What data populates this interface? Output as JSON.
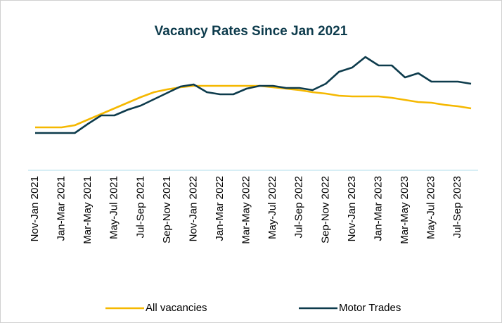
{
  "chart_data": {
    "type": "line",
    "title": "Vacancy Rates Since Jan 2021",
    "categories": [
      "Nov-Jan 2021",
      null,
      "Jan-Mar 2021",
      null,
      "Mar-May 2021",
      null,
      "May-Jul 2021",
      null,
      "Jul-Sep 2021",
      null,
      "Sep-Nov 2021",
      null,
      "Nov-Jan 2022",
      null,
      "Jan-Mar 2022",
      null,
      "Mar-May 2022",
      null,
      "May-Jul 2022",
      null,
      "Jul-Sep 2022",
      null,
      "Sep-Nov 2022",
      null,
      "Nov-Jan 2023",
      null,
      "Jan-Mar 2023",
      null,
      "Mar-May 2023",
      null,
      "May-Jul 2023",
      null,
      "Jul-Sep 2023",
      null
    ],
    "series": [
      {
        "name": "All vacancies",
        "color": "#f5b800",
        "values": [
          61,
          61,
          61,
          64,
          72,
          80,
          88,
          96,
          104,
          111,
          115,
          118,
          120,
          120,
          120,
          120,
          120,
          120,
          118,
          116,
          114,
          111,
          109,
          106,
          105,
          105,
          105,
          103,
          100,
          97,
          96,
          93,
          91,
          88
        ]
      },
      {
        "name": "Motor Trades",
        "color": "#0d3b4c",
        "values": [
          53,
          53,
          53,
          53,
          66,
          78,
          78,
          86,
          92,
          101,
          110,
          119,
          122,
          111,
          108,
          108,
          116,
          120,
          120,
          117,
          117,
          114,
          123,
          140,
          146,
          161,
          149,
          149,
          132,
          138,
          126,
          126,
          126,
          123
        ]
      }
    ],
    "ylim": [
      0,
      182
    ],
    "legend": "bottom"
  }
}
